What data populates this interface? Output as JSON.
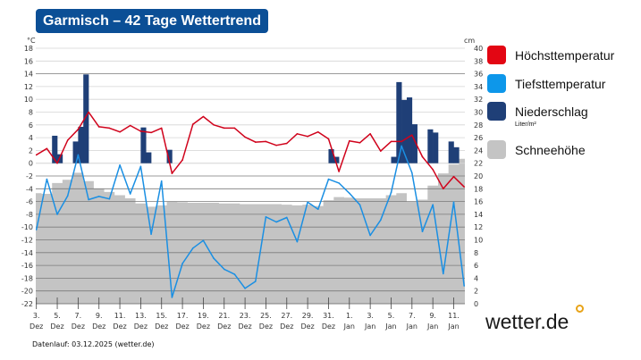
{
  "title": "Garmisch – 42 Tage Wettertrend",
  "footer": "Datenlauf: 03.12.2025 (wetter.de)",
  "logo": "wetter.de",
  "colors": {
    "max_temp": "#d0021b",
    "min_temp": "#1a8fe3",
    "precip": "#1f3f77",
    "snow": "#c4c4c4",
    "title_bg": "#0b4f96",
    "logo_dot": "#e8a317"
  },
  "legend": [
    {
      "label": "Höchsttemperatur",
      "color": "#e30613"
    },
    {
      "label": "Tiefsttemperatur",
      "color": "#0d97ea"
    },
    {
      "label": "Niederschlag",
      "color": "#1f3f77",
      "unit": "Liter/m²"
    },
    {
      "label": "Schneehöhe",
      "color": "#c4c4c4"
    }
  ],
  "chart_data": {
    "type": "line",
    "title": "Garmisch – 42 Tage Wettertrend",
    "y_left": {
      "label": "°C",
      "range": [
        -22,
        18
      ],
      "ticks": [
        18,
        16,
        14,
        12,
        10,
        8,
        6,
        4,
        2,
        0,
        -2,
        -4,
        -6,
        -8,
        -10,
        -12,
        -14,
        -16,
        -18,
        -20,
        -22
      ]
    },
    "y_right": {
      "label": "cm",
      "range": [
        0,
        40
      ],
      "ticks": [
        40,
        38,
        36,
        34,
        32,
        30,
        28,
        26,
        24,
        22,
        20,
        18,
        16,
        14,
        12,
        10,
        8,
        6,
        4,
        2,
        0
      ]
    },
    "x_tick_labels": [
      [
        "3.",
        "Dez"
      ],
      [
        "5.",
        "Dez"
      ],
      [
        "7.",
        "Dez"
      ],
      [
        "9.",
        "Dez"
      ],
      [
        "11.",
        "Dez"
      ],
      [
        "13.",
        "Dez"
      ],
      [
        "15.",
        "Dez"
      ],
      [
        "17.",
        "Dez"
      ],
      [
        "19.",
        "Dez"
      ],
      [
        "21.",
        "Dez"
      ],
      [
        "23.",
        "Dez"
      ],
      [
        "25.",
        "Dez"
      ],
      [
        "27.",
        "Dez"
      ],
      [
        "29.",
        "Dez"
      ],
      [
        "31.",
        "Dez"
      ],
      [
        "1.",
        "Jan"
      ],
      [
        "3.",
        "Jan"
      ],
      [
        "5.",
        "Jan"
      ],
      [
        "7.",
        "Jan"
      ],
      [
        "9.",
        "Jan"
      ],
      [
        "11.",
        "Jan"
      ]
    ],
    "grid": true,
    "legend_position": "right",
    "series": [
      {
        "name": "Höchsttemperatur",
        "type": "line",
        "axis": "left",
        "values": [
          1.3,
          2.3,
          0,
          3.6,
          5.3,
          8,
          5.7,
          5.5,
          4.9,
          5.9,
          5.0,
          4.8,
          5.5,
          -1.6,
          0.5,
          6.1,
          7.3,
          6.0,
          5.5,
          5.5,
          4.1,
          3.3,
          3.4,
          2.8,
          3.1,
          4.6,
          4.2,
          4.9,
          3.8,
          -1.3,
          3.5,
          3.2,
          4.6,
          1.9,
          3.4,
          3.4,
          4.4,
          1.0,
          -1.0,
          -4.0,
          -2.1,
          -3.7
        ]
      },
      {
        "name": "Tiefsttemperatur",
        "type": "line",
        "axis": "left",
        "values": [
          -10.4,
          -2.5,
          -8.0,
          -5.1,
          1.3,
          -5.7,
          -5.2,
          -5.6,
          -0.3,
          -4.8,
          -0.5,
          -11.1,
          -2.8,
          -21.0,
          -15.7,
          -13.3,
          -12.1,
          -14.9,
          -16.6,
          -17.4,
          -19.6,
          -18.5,
          -8.4,
          -9.2,
          -8.5,
          -12.3,
          -6.1,
          -7.2,
          -2.5,
          -3.1,
          -4.7,
          -6.5,
          -11.3,
          -8.9,
          -4.6,
          2.7,
          -1.5,
          -10.7,
          -6.5,
          -17.3,
          -6.1,
          -19.2
        ]
      },
      {
        "name": "Niederschlag",
        "type": "bar",
        "axis": "left",
        "unit": "Liter/m²",
        "values_12h": [
          0,
          0,
          0,
          4.3,
          1.4,
          0,
          0,
          3.4,
          5.7,
          13.9,
          0,
          0,
          0,
          0,
          0,
          0,
          0,
          0,
          0,
          0,
          5.6,
          1.7,
          0,
          0,
          0,
          2.1,
          0,
          0,
          0,
          0,
          0,
          0,
          0,
          0,
          0,
          0,
          0,
          0,
          0,
          0,
          0,
          0,
          0,
          0,
          0,
          0,
          0,
          0,
          0,
          0,
          0,
          0,
          0,
          0,
          0,
          0,
          2.2,
          1.0,
          0,
          0,
          0,
          0,
          0,
          0,
          0,
          0,
          0,
          0,
          1.0,
          12.7,
          9.9,
          10.3,
          6.1,
          0,
          0,
          5.3,
          4.8,
          0,
          0,
          3.4,
          2.5,
          0,
          0,
          0
        ]
      },
      {
        "name": "Schneehöhe",
        "type": "area",
        "axis": "right",
        "values": [
          17.3,
          17.2,
          18.9,
          19.4,
          20.5,
          19.2,
          18.0,
          17.5,
          17.0,
          16.5,
          15.7,
          15.2,
          15.4,
          16.0,
          15.9,
          15.8,
          15.8,
          15.8,
          15.7,
          15.7,
          15.6,
          15.6,
          15.6,
          15.6,
          15.5,
          15.4,
          15.5,
          15.3,
          16.2,
          16.7,
          16.6,
          16.5,
          16.5,
          16.5,
          17.0,
          17.3,
          16.0,
          16.3,
          18.5,
          20.4,
          21.8,
          22.7
        ]
      }
    ]
  }
}
